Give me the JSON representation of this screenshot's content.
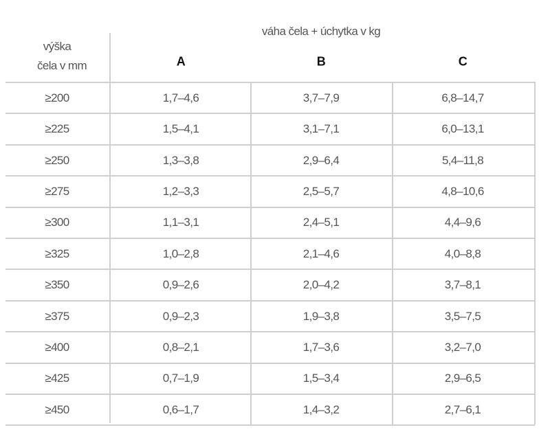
{
  "header": {
    "row_label": [
      "výška",
      "čela v mm"
    ],
    "group_label": "váha čela + úchytka v kg",
    "columns": [
      "A",
      "B",
      "C"
    ]
  },
  "table": {
    "rows": [
      [
        "≥200",
        "1,7–4,6",
        "3,7–7,9",
        "6,8–14,7"
      ],
      [
        "≥225",
        "1,5–4,1",
        "3,1–7,1",
        "6,0–13,1"
      ],
      [
        "≥250",
        "1,3–3,8",
        "2,9–6,4",
        "5,4–11,8"
      ],
      [
        "≥275",
        "1,2–3,3",
        "2,5–5,7",
        "4,8–10,6"
      ],
      [
        "≥300",
        "1,1–3,1",
        "2,4–5,1",
        "4,4–9,6"
      ],
      [
        "≥325",
        "1,0–2,8",
        "2,1–4,6",
        "4,0–8,8"
      ],
      [
        "≥350",
        "0,9–2,6",
        "2,0–4,2",
        "3,7–8,1"
      ],
      [
        "≥375",
        "0,9–2,3",
        "1,9–3,8",
        "3,5–7,5"
      ],
      [
        "≥400",
        "0,8–2,1",
        "1,7–3,6",
        "3,2–7,0"
      ],
      [
        "≥425",
        "0,7–1,9",
        "1,5–3,4",
        "2,9–6,5"
      ],
      [
        "≥450",
        "0,6–1,7",
        "1,4–3,2",
        "2,7–6,1"
      ]
    ]
  }
}
